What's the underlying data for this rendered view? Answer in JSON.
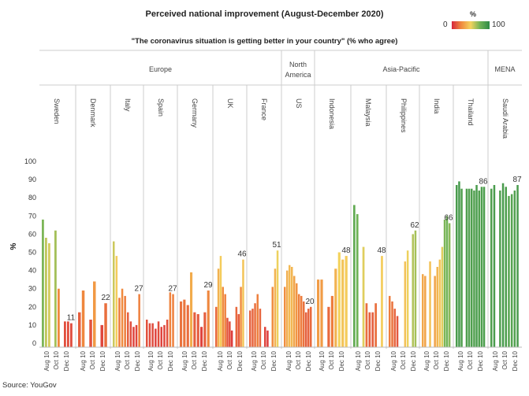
{
  "title": "Perceived national improvement (August-December 2020)",
  "subtitle": "\"The coronavirus situation is getting better in your country\" (% who agree)",
  "legend": {
    "title": "%",
    "min": "0",
    "max": "100"
  },
  "source": "Source: YouGov",
  "chart_data": {
    "type": "bar",
    "ylabel": "%",
    "ylim": [
      0,
      100
    ],
    "yticks": [
      "0",
      "10",
      "20",
      "30",
      "40",
      "50",
      "60",
      "70",
      "80",
      "90",
      "100"
    ],
    "xticks": [
      "Aug 10",
      "Oct 10",
      "Dec 10"
    ],
    "regions": [
      {
        "name": "Europe",
        "countries": [
          "Sweden",
          "Denmark",
          "Italy",
          "Spain",
          "Germany",
          "UK",
          "France"
        ]
      },
      {
        "name": "North America",
        "countries": [
          "US"
        ]
      },
      {
        "name": "Asia-Pacific",
        "countries": [
          "Indonesia",
          "Malaysia",
          "Philippines",
          "India",
          "Thailand"
        ]
      },
      {
        "name": "MENA",
        "countries": [
          "Saudi Arabia"
        ]
      }
    ],
    "series": [
      {
        "name": "Sweden",
        "values": [
          68,
          58,
          55,
          null,
          62,
          30,
          null,
          12,
          12,
          11
        ],
        "end_label": "11"
      },
      {
        "name": "Denmark",
        "values": [
          17,
          29,
          null,
          13,
          34,
          null,
          10,
          22
        ],
        "end_label": "22"
      },
      {
        "name": "Italy",
        "values": [
          56,
          48,
          25,
          30,
          26,
          17,
          12,
          9,
          10,
          27
        ],
        "end_label": "27"
      },
      {
        "name": "Spain",
        "values": [
          13,
          11,
          11,
          8,
          12,
          9,
          10,
          13,
          28,
          27
        ],
        "end_label": "27"
      },
      {
        "name": "Germany",
        "values": [
          23,
          24,
          21,
          39,
          17,
          16,
          9,
          17,
          29
        ],
        "end_label": "29"
      },
      {
        "name": "UK",
        "values": [
          20,
          41,
          48,
          31,
          27,
          14,
          12,
          7,
          null,
          20,
          16,
          31,
          46
        ],
        "end_label": "46"
      },
      {
        "name": "France",
        "values": [
          18,
          19,
          22,
          27,
          19,
          null,
          9,
          7,
          null,
          31,
          41,
          51
        ],
        "end_label": "51"
      },
      {
        "name": "US",
        "values": [
          31,
          40,
          43,
          42,
          37,
          33,
          27,
          26,
          23,
          17,
          19,
          20
        ],
        "end_label": "20"
      },
      {
        "name": "Indonesia",
        "values": [
          35,
          35,
          null,
          20,
          26,
          41,
          50,
          46,
          48
        ],
        "end_label": "48"
      },
      {
        "name": "Malaysia",
        "values": [
          76,
          71,
          null,
          53,
          22,
          17,
          17,
          22,
          null,
          48
        ],
        "end_label": "48"
      },
      {
        "name": "Philippines",
        "values": [
          26,
          23,
          19,
          15,
          null,
          null,
          45,
          51,
          null,
          60,
          62
        ],
        "end_label": "62"
      },
      {
        "name": "India",
        "values": [
          38,
          37,
          null,
          45,
          null,
          37,
          42,
          46,
          53,
          68,
          70,
          66
        ],
        "end_label": "66"
      },
      {
        "name": "Thailand",
        "values": [
          87,
          89,
          85,
          null,
          85,
          85,
          85,
          84,
          87,
          84,
          86,
          86
        ],
        "end_label": "86"
      },
      {
        "name": "Saudi Arabia",
        "values": [
          85,
          87,
          null,
          84,
          88,
          86,
          81,
          82,
          84,
          87
        ],
        "end_label": "87"
      }
    ]
  }
}
